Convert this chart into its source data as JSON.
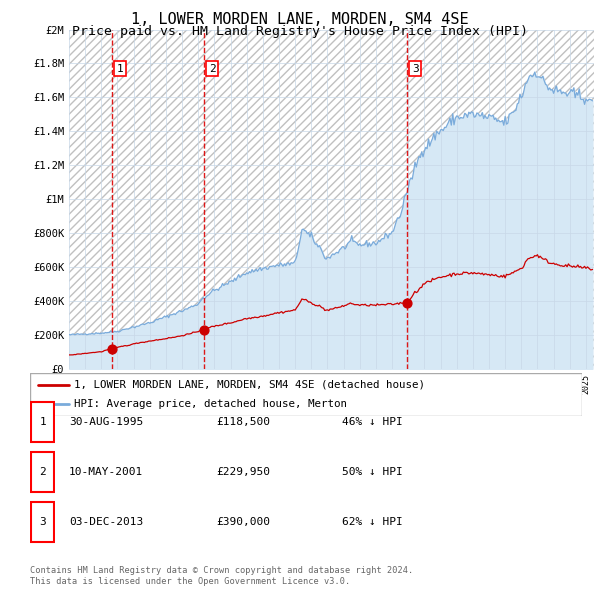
{
  "title": "1, LOWER MORDEN LANE, MORDEN, SM4 4SE",
  "subtitle": "Price paid vs. HM Land Registry's House Price Index (HPI)",
  "title_fontsize": 11,
  "subtitle_fontsize": 9.5,
  "ylim": [
    0,
    2000000
  ],
  "yticks": [
    0,
    200000,
    400000,
    600000,
    800000,
    1000000,
    1200000,
    1400000,
    1600000,
    1800000,
    2000000
  ],
  "ytick_labels": [
    "£0",
    "£200K",
    "£400K",
    "£600K",
    "£800K",
    "£1M",
    "£1.2M",
    "£1.4M",
    "£1.6M",
    "£1.8M",
    "£2M"
  ],
  "xlim_start": 1993.0,
  "xlim_end": 2025.5,
  "sale_dates": [
    1995.664,
    2001.356,
    2013.92
  ],
  "sale_prices": [
    118500,
    229950,
    390000
  ],
  "sale_labels": [
    "1",
    "2",
    "3"
  ],
  "sale_color": "#cc0000",
  "hpi_line_color": "#7aabdb",
  "hpi_bg_color": "#d6e8f5",
  "grid_color": "#c8d8e8",
  "hatch_color": "#c0c0c0",
  "legend_line1": "1, LOWER MORDEN LANE, MORDEN, SM4 4SE (detached house)",
  "legend_line2": "HPI: Average price, detached house, Merton",
  "table_entries": [
    {
      "label": "1",
      "date": "30-AUG-1995",
      "price": "£118,500",
      "hpi": "46% ↓ HPI"
    },
    {
      "label": "2",
      "date": "10-MAY-2001",
      "price": "£229,950",
      "hpi": "50% ↓ HPI"
    },
    {
      "label": "3",
      "date": "03-DEC-2013",
      "price": "£390,000",
      "hpi": "62% ↓ HPI"
    }
  ],
  "footnote": "Contains HM Land Registry data © Crown copyright and database right 2024.\nThis data is licensed under the Open Government Licence v3.0."
}
